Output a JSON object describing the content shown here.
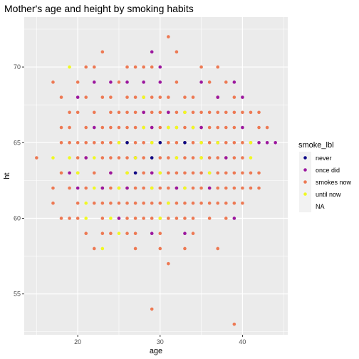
{
  "chart_data": {
    "type": "scatter",
    "title": "Mother's age and height by smoking habits",
    "xlabel": "age",
    "ylabel": "ht",
    "xlim": [
      13.5,
      45.5
    ],
    "ylim": [
      52.3,
      73.3
    ],
    "xticks": [
      20,
      30,
      40
    ],
    "yticks": [
      55,
      60,
      65,
      70
    ],
    "grid": true,
    "legend": {
      "title": "smoke_lbl",
      "position": "right",
      "entries": [
        {
          "label": "never",
          "color": "#0D0887"
        },
        {
          "label": "once did",
          "color": "#9C179E"
        },
        {
          "label": "smokes now",
          "color": "#ED7953"
        },
        {
          "label": "until now",
          "color": "#F0F921"
        },
        {
          "label": "NA",
          "color": null
        }
      ]
    },
    "series": [
      {
        "name": "never",
        "color": "#0D0887",
        "points": [
          [
            26,
            65
          ],
          [
            29,
            64
          ],
          [
            33,
            65
          ],
          [
            27,
            63
          ],
          [
            30,
            65
          ]
        ]
      },
      {
        "name": "once did",
        "color": "#9C179E",
        "points": [
          [
            20,
            68
          ],
          [
            22,
            69
          ],
          [
            24,
            69
          ],
          [
            26,
            69
          ],
          [
            28,
            69
          ],
          [
            29,
            71
          ],
          [
            30,
            70
          ],
          [
            30,
            69
          ],
          [
            35,
            69
          ],
          [
            37,
            68
          ],
          [
            39,
            69
          ],
          [
            40,
            68
          ],
          [
            21,
            64
          ],
          [
            24,
            63
          ],
          [
            27,
            64
          ],
          [
            29,
            66
          ],
          [
            31,
            67
          ],
          [
            33,
            65
          ],
          [
            35,
            66
          ],
          [
            37,
            65
          ],
          [
            40,
            66
          ],
          [
            42,
            65
          ],
          [
            43,
            65
          ],
          [
            44,
            65
          ],
          [
            20,
            62
          ],
          [
            23,
            62
          ],
          [
            26,
            62
          ],
          [
            29,
            63
          ],
          [
            32,
            62
          ],
          [
            36,
            62
          ],
          [
            39,
            60
          ],
          [
            25,
            60
          ],
          [
            29,
            59
          ],
          [
            33,
            59
          ],
          [
            22,
            66
          ],
          [
            28,
            67
          ],
          [
            38,
            64
          ],
          [
            19,
            63
          ]
        ]
      },
      {
        "name": "smokes now",
        "color": "#ED7953",
        "points": [
          [
            15,
            64
          ],
          [
            17,
            62
          ],
          [
            17,
            61
          ],
          [
            17,
            69
          ],
          [
            18,
            68
          ],
          [
            18,
            66
          ],
          [
            18,
            65
          ],
          [
            18,
            63
          ],
          [
            18,
            60
          ],
          [
            19,
            67
          ],
          [
            19,
            66
          ],
          [
            19,
            65
          ],
          [
            19,
            62
          ],
          [
            19,
            60
          ],
          [
            20,
            69
          ],
          [
            20,
            67
          ],
          [
            20,
            65
          ],
          [
            20,
            64
          ],
          [
            20,
            63
          ],
          [
            20,
            61
          ],
          [
            20,
            60
          ],
          [
            21,
            70
          ],
          [
            21,
            68
          ],
          [
            21,
            66
          ],
          [
            21,
            65
          ],
          [
            21,
            64
          ],
          [
            21,
            62
          ],
          [
            21,
            59
          ],
          [
            22,
            70
          ],
          [
            22,
            67
          ],
          [
            22,
            65
          ],
          [
            22,
            63
          ],
          [
            22,
            61
          ],
          [
            22,
            58
          ],
          [
            23,
            71
          ],
          [
            23,
            68
          ],
          [
            23,
            66
          ],
          [
            23,
            65
          ],
          [
            23,
            64
          ],
          [
            23,
            62
          ],
          [
            23,
            61
          ],
          [
            23,
            60
          ],
          [
            23,
            59
          ],
          [
            24,
            68
          ],
          [
            24,
            67
          ],
          [
            24,
            66
          ],
          [
            24,
            65
          ],
          [
            24,
            64
          ],
          [
            24,
            63
          ],
          [
            24,
            62
          ],
          [
            24,
            61
          ],
          [
            24,
            59
          ],
          [
            25,
            69
          ],
          [
            25,
            67
          ],
          [
            25,
            66
          ],
          [
            25,
            65
          ],
          [
            25,
            64
          ],
          [
            25,
            62
          ],
          [
            25,
            61
          ],
          [
            25,
            60
          ],
          [
            26,
            70
          ],
          [
            26,
            68
          ],
          [
            26,
            67
          ],
          [
            26,
            66
          ],
          [
            26,
            65
          ],
          [
            26,
            64
          ],
          [
            26,
            63
          ],
          [
            26,
            62
          ],
          [
            26,
            61
          ],
          [
            26,
            60
          ],
          [
            26,
            59
          ],
          [
            27,
            70
          ],
          [
            27,
            68
          ],
          [
            27,
            67
          ],
          [
            27,
            66
          ],
          [
            27,
            65
          ],
          [
            27,
            64
          ],
          [
            27,
            63
          ],
          [
            27,
            62
          ],
          [
            27,
            61
          ],
          [
            27,
            60
          ],
          [
            27,
            59
          ],
          [
            27,
            58
          ],
          [
            28,
            70
          ],
          [
            28,
            68
          ],
          [
            28,
            67
          ],
          [
            28,
            66
          ],
          [
            28,
            65
          ],
          [
            28,
            64
          ],
          [
            28,
            63
          ],
          [
            28,
            62
          ],
          [
            28,
            61
          ],
          [
            28,
            60
          ],
          [
            29,
            70
          ],
          [
            29,
            68
          ],
          [
            29,
            67
          ],
          [
            29,
            66
          ],
          [
            29,
            65
          ],
          [
            29,
            64
          ],
          [
            29,
            63
          ],
          [
            29,
            62
          ],
          [
            29,
            61
          ],
          [
            29,
            60
          ],
          [
            29,
            54
          ],
          [
            30,
            68
          ],
          [
            30,
            67
          ],
          [
            30,
            66
          ],
          [
            30,
            65
          ],
          [
            30,
            64
          ],
          [
            30,
            63
          ],
          [
            30,
            62
          ],
          [
            30,
            61
          ],
          [
            30,
            60
          ],
          [
            30,
            59
          ],
          [
            30,
            58
          ],
          [
            31,
            72
          ],
          [
            31,
            68
          ],
          [
            31,
            67
          ],
          [
            31,
            66
          ],
          [
            31,
            65
          ],
          [
            31,
            64
          ],
          [
            31,
            63
          ],
          [
            31,
            62
          ],
          [
            31,
            61
          ],
          [
            31,
            60
          ],
          [
            31,
            57
          ],
          [
            32,
            71
          ],
          [
            32,
            69
          ],
          [
            32,
            67
          ],
          [
            32,
            66
          ],
          [
            32,
            65
          ],
          [
            32,
            64
          ],
          [
            32,
            63
          ],
          [
            32,
            62
          ],
          [
            32,
            61
          ],
          [
            32,
            60
          ],
          [
            33,
            68
          ],
          [
            33,
            67
          ],
          [
            33,
            66
          ],
          [
            33,
            64
          ],
          [
            33,
            63
          ],
          [
            33,
            62
          ],
          [
            33,
            61
          ],
          [
            33,
            60
          ],
          [
            33,
            58
          ],
          [
            34,
            68
          ],
          [
            34,
            67
          ],
          [
            34,
            66
          ],
          [
            34,
            65
          ],
          [
            34,
            64
          ],
          [
            34,
            63
          ],
          [
            34,
            62
          ],
          [
            34,
            61
          ],
          [
            34,
            60
          ],
          [
            34,
            59
          ],
          [
            35,
            70
          ],
          [
            35,
            67
          ],
          [
            35,
            66
          ],
          [
            35,
            65
          ],
          [
            35,
            64
          ],
          [
            35,
            63
          ],
          [
            35,
            62
          ],
          [
            35,
            61
          ],
          [
            36,
            69
          ],
          [
            36,
            67
          ],
          [
            36,
            66
          ],
          [
            36,
            65
          ],
          [
            36,
            64
          ],
          [
            36,
            63
          ],
          [
            36,
            62
          ],
          [
            36,
            61
          ],
          [
            36,
            60
          ],
          [
            37,
            70
          ],
          [
            37,
            68
          ],
          [
            37,
            67
          ],
          [
            37,
            66
          ],
          [
            37,
            65
          ],
          [
            37,
            64
          ],
          [
            37,
            63
          ],
          [
            37,
            62
          ],
          [
            37,
            61
          ],
          [
            37,
            58
          ],
          [
            38,
            69
          ],
          [
            38,
            67
          ],
          [
            38,
            66
          ],
          [
            38,
            65
          ],
          [
            38,
            64
          ],
          [
            38,
            63
          ],
          [
            38,
            62
          ],
          [
            38,
            61
          ],
          [
            38,
            60
          ],
          [
            39,
            68
          ],
          [
            39,
            67
          ],
          [
            39,
            66
          ],
          [
            39,
            65
          ],
          [
            39,
            64
          ],
          [
            39,
            63
          ],
          [
            39,
            62
          ],
          [
            39,
            61
          ],
          [
            39,
            53
          ],
          [
            40,
            67
          ],
          [
            40,
            65
          ],
          [
            40,
            64
          ],
          [
            40,
            63
          ],
          [
            40,
            62
          ],
          [
            40,
            61
          ],
          [
            41,
            67
          ],
          [
            41,
            65
          ],
          [
            41,
            63
          ],
          [
            41,
            62
          ],
          [
            42,
            67
          ],
          [
            42,
            66
          ],
          [
            42,
            63
          ],
          [
            42,
            62
          ],
          [
            43,
            66
          ]
        ]
      },
      {
        "name": "until now",
        "color": "#F0F921",
        "points": [
          [
            17,
            64
          ],
          [
            19,
            70
          ],
          [
            19,
            64
          ],
          [
            20,
            63
          ],
          [
            21,
            61
          ],
          [
            21,
            60
          ],
          [
            22,
            64
          ],
          [
            22,
            62
          ],
          [
            23,
            58
          ],
          [
            24,
            60
          ],
          [
            25,
            59
          ],
          [
            25,
            62
          ],
          [
            25,
            65
          ],
          [
            26,
            65
          ],
          [
            26,
            63
          ],
          [
            27,
            64
          ],
          [
            28,
            66
          ],
          [
            28,
            68
          ],
          [
            29,
            62
          ],
          [
            29,
            65
          ],
          [
            30,
            63
          ],
          [
            31,
            66
          ],
          [
            31,
            61
          ],
          [
            32,
            64
          ],
          [
            32,
            66
          ],
          [
            33,
            67
          ],
          [
            33,
            62
          ],
          [
            34,
            66
          ],
          [
            35,
            65
          ],
          [
            35,
            64
          ],
          [
            36,
            63
          ],
          [
            37,
            65
          ],
          [
            41,
            65
          ],
          [
            41,
            64
          ],
          [
            30,
            60
          ],
          [
            33,
            65
          ]
        ]
      }
    ]
  }
}
